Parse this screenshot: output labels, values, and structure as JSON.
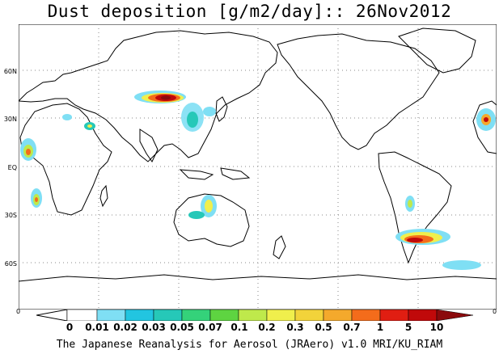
{
  "title": "Dust deposition [g/m2/day]:: 26Nov2012",
  "lat_labels": [
    "60N",
    "30N",
    "EQ",
    "30S",
    "60S"
  ],
  "lon_labels": [
    "0",
    "0"
  ],
  "colorbar": {
    "labels": [
      "0",
      "0.01",
      "0.02",
      "0.03",
      "0.05",
      "0.07",
      "0.1",
      "0.2",
      "0.3",
      "0.5",
      "0.7",
      "1",
      "5",
      "10"
    ],
    "colors": [
      "#ffffff",
      "#7fdff4",
      "#22c5e0",
      "#26c8b8",
      "#34d27a",
      "#5ed441",
      "#bfe94b",
      "#f0ef4c",
      "#f2d33a",
      "#f4a92c",
      "#f46c1b",
      "#e01e12",
      "#c0090a",
      "#8b0a0c"
    ]
  },
  "footer": "The Japanese Reanalysis for Aerosol (JRAero) v1.0 MRI/KU_RIAM"
}
